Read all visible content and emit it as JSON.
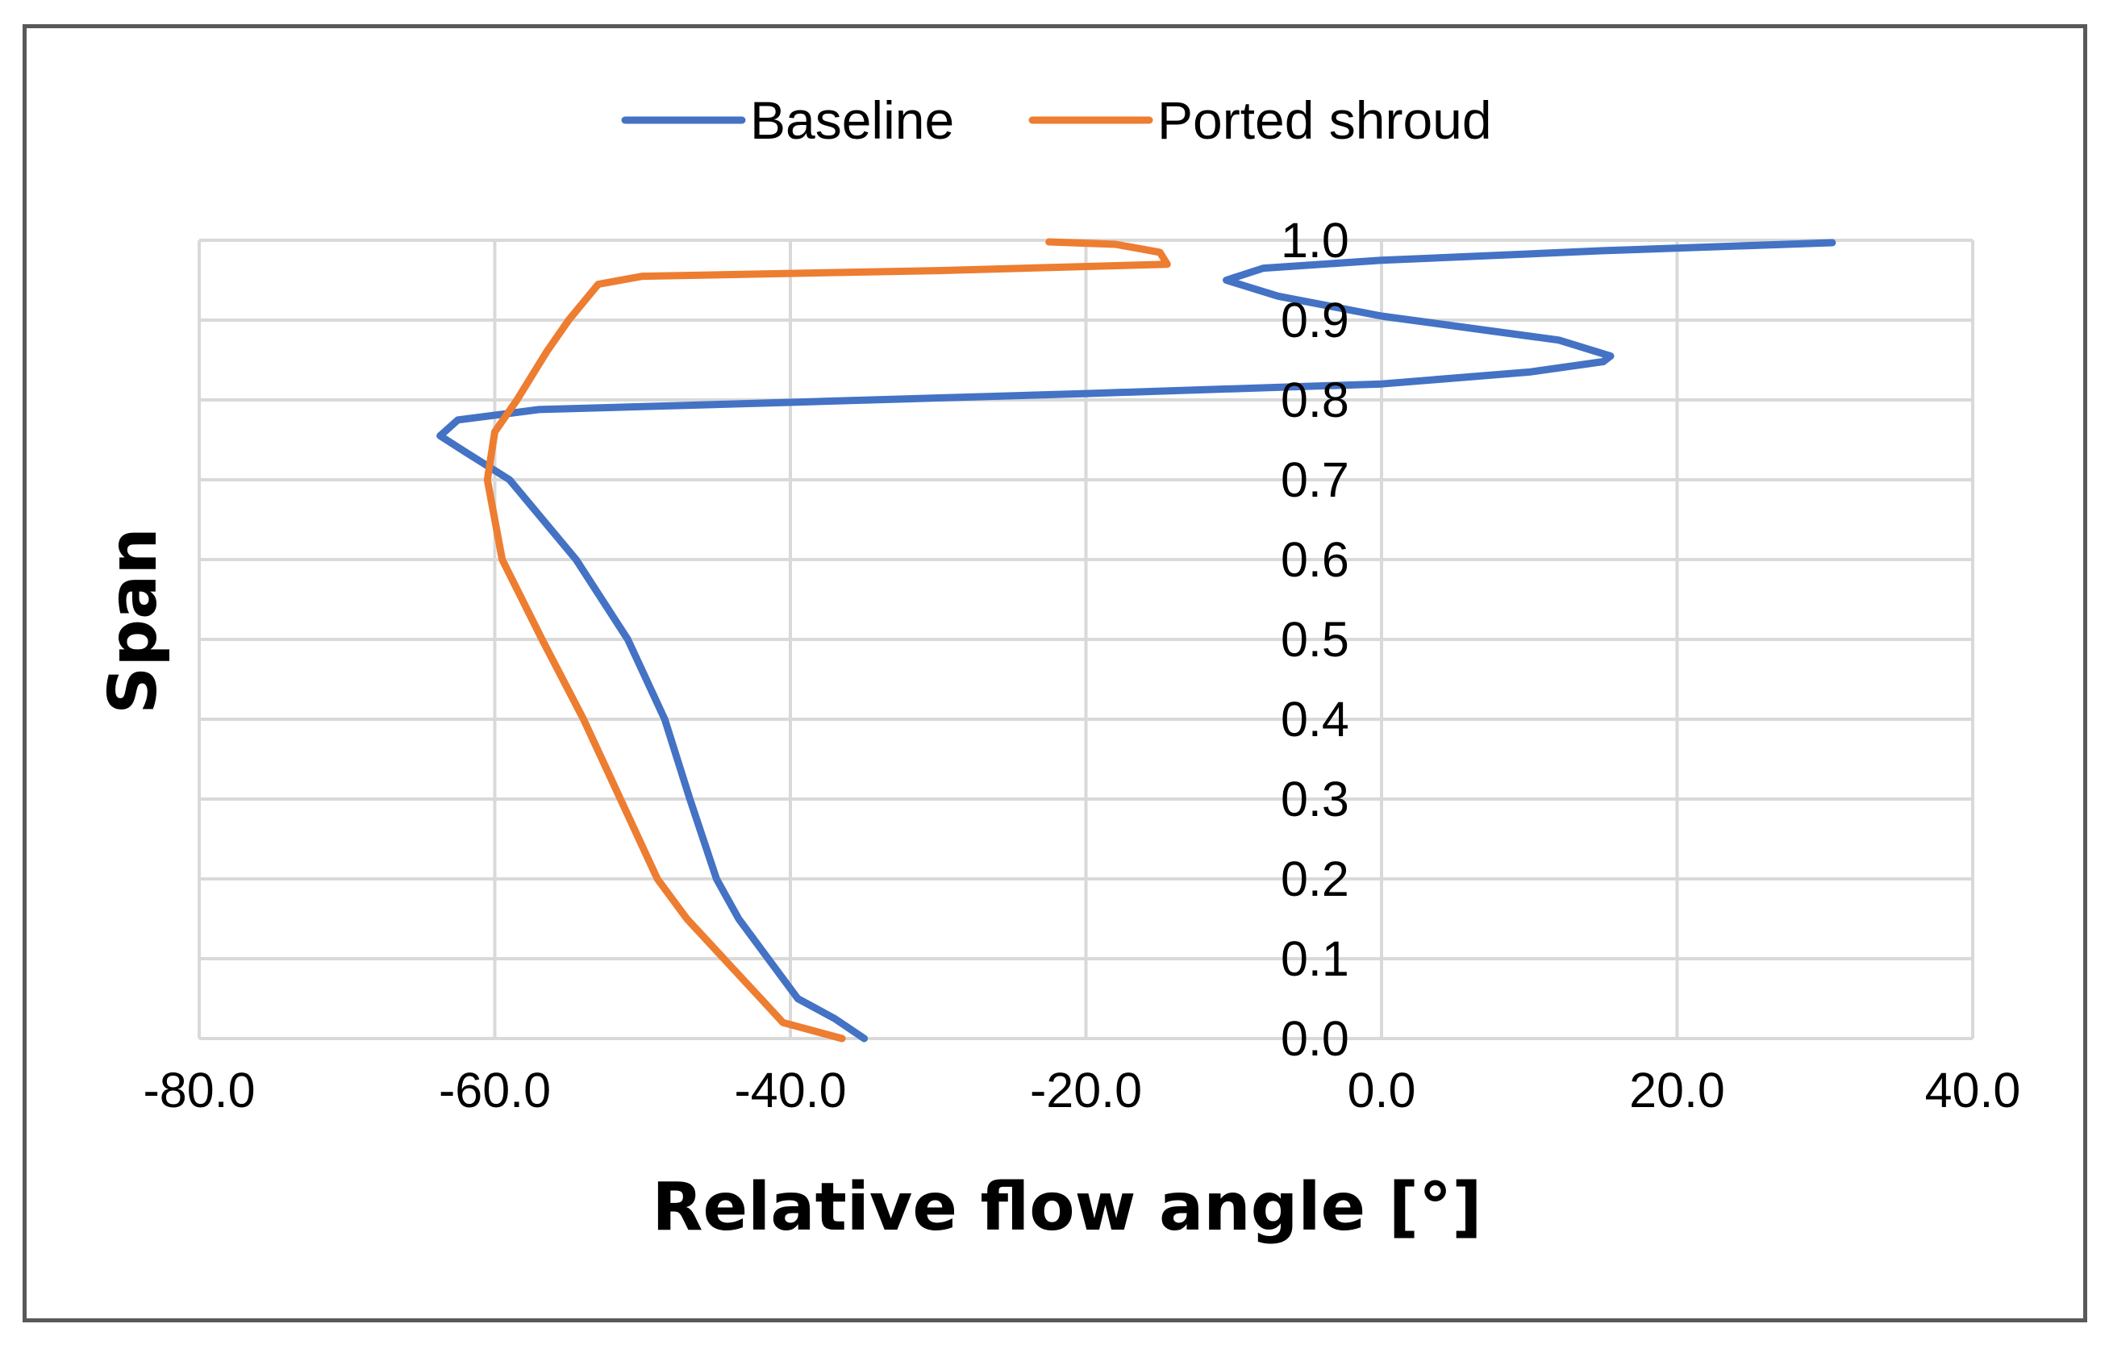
{
  "chart_data": {
    "type": "line",
    "title": "",
    "xlabel": "Relative flow angle [°]",
    "ylabel": "Span",
    "xlim": [
      -80,
      40
    ],
    "ylim": [
      0,
      1
    ],
    "x_ticks": [
      "-80.0",
      "-60.0",
      "-40.0",
      "-20.0",
      "0.0",
      "20.0",
      "40.0"
    ],
    "y_ticks": [
      "0.0",
      "0.1",
      "0.2",
      "0.3",
      "0.4",
      "0.5",
      "0.6",
      "0.7",
      "0.8",
      "0.9",
      "1.0"
    ],
    "grid": true,
    "legend_position": "top",
    "series": [
      {
        "name": "Baseline",
        "color": "#4472C4",
        "points": [
          [
            -35.0,
            0.0
          ],
          [
            -37.0,
            0.025
          ],
          [
            -39.5,
            0.05
          ],
          [
            -41.5,
            0.1
          ],
          [
            -43.5,
            0.15
          ],
          [
            -45.0,
            0.2
          ],
          [
            -46.8,
            0.3
          ],
          [
            -48.5,
            0.4
          ],
          [
            -51.0,
            0.5
          ],
          [
            -54.5,
            0.6
          ],
          [
            -59.0,
            0.7
          ],
          [
            -62.0,
            0.735
          ],
          [
            -63.7,
            0.755
          ],
          [
            -62.5,
            0.775
          ],
          [
            -57.0,
            0.788
          ],
          [
            -40.0,
            0.797
          ],
          [
            -20.0,
            0.808
          ],
          [
            0.0,
            0.82
          ],
          [
            10.0,
            0.835
          ],
          [
            15.0,
            0.848
          ],
          [
            15.5,
            0.855
          ],
          [
            12.0,
            0.875
          ],
          [
            0.0,
            0.905
          ],
          [
            -7.0,
            0.93
          ],
          [
            -10.5,
            0.95
          ],
          [
            -8.0,
            0.965
          ],
          [
            0.0,
            0.975
          ],
          [
            15.0,
            0.987
          ],
          [
            30.5,
            0.997
          ]
        ]
      },
      {
        "name": "Ported shroud",
        "color": "#ED7D31",
        "points": [
          [
            -36.5,
            0.0
          ],
          [
            -40.5,
            0.02
          ],
          [
            -42.0,
            0.05
          ],
          [
            -44.5,
            0.1
          ],
          [
            -47.0,
            0.15
          ],
          [
            -49.0,
            0.2
          ],
          [
            -51.5,
            0.3
          ],
          [
            -54.0,
            0.4
          ],
          [
            -56.8,
            0.5
          ],
          [
            -59.5,
            0.6
          ],
          [
            -60.5,
            0.7
          ],
          [
            -60.0,
            0.76
          ],
          [
            -58.5,
            0.8
          ],
          [
            -56.5,
            0.86
          ],
          [
            -55.0,
            0.9
          ],
          [
            -53.0,
            0.945
          ],
          [
            -50.0,
            0.955
          ],
          [
            -30.0,
            0.962
          ],
          [
            -14.5,
            0.97
          ],
          [
            -15.0,
            0.985
          ],
          [
            -18.0,
            0.995
          ],
          [
            -22.5,
            0.998
          ]
        ]
      }
    ]
  }
}
